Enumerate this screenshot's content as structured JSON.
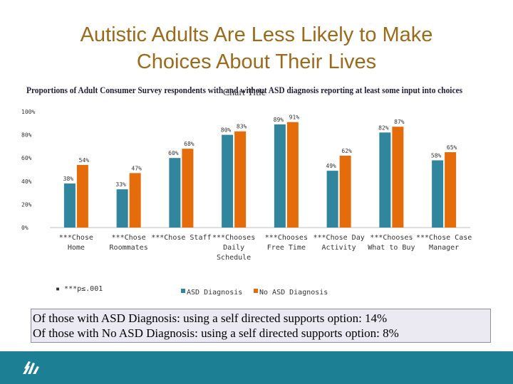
{
  "slide": {
    "title_line1": "Autistic Adults Are Less Likely to Make",
    "title_line2": "Choices About Their Lives",
    "footnote": "***p≤.001",
    "info_line1": "Of those with ASD Diagnosis: using a self directed supports option: 14%",
    "info_line2": "Of those with No ASD Diagnosis: using a self directed supports option: 8%"
  },
  "colors": {
    "asd": "#31859c",
    "no_asd": "#e46c0a",
    "title": "#9b6a1b",
    "footer": "#1d7f93"
  },
  "chart_data": {
    "type": "bar",
    "title": "Proportions of Adult Consumer Survey respondents with and without ASD diagnosis reporting at least some input into choices",
    "placeholder_title": "Chart Title",
    "categories": [
      [
        "***Chose",
        "Home"
      ],
      [
        "***Chose",
        "Roommates"
      ],
      [
        "***Chose Staff"
      ],
      [
        "***Chooses",
        "Daily",
        "Schedule"
      ],
      [
        "***Chooses",
        "Free Time"
      ],
      [
        "***Chose Day",
        "Activity"
      ],
      [
        "***Chooses",
        "What to Buy"
      ],
      [
        "***Chose Case",
        "Manager"
      ]
    ],
    "series": [
      {
        "name": "ASD Diagnosis",
        "values": [
          38,
          33,
          60,
          80,
          89,
          49,
          82,
          58
        ]
      },
      {
        "name": "No ASD Diagnosis",
        "values": [
          54,
          47,
          68,
          83,
          91,
          62,
          87,
          65
        ]
      }
    ],
    "ylim": [
      0,
      100
    ],
    "yticks": [
      0,
      20,
      40,
      60,
      80,
      100
    ],
    "ytick_labels": [
      "0%",
      "20%",
      "40%",
      "60%",
      "80%",
      "100%"
    ],
    "value_suffix": "%",
    "legend_position": "bottom"
  }
}
